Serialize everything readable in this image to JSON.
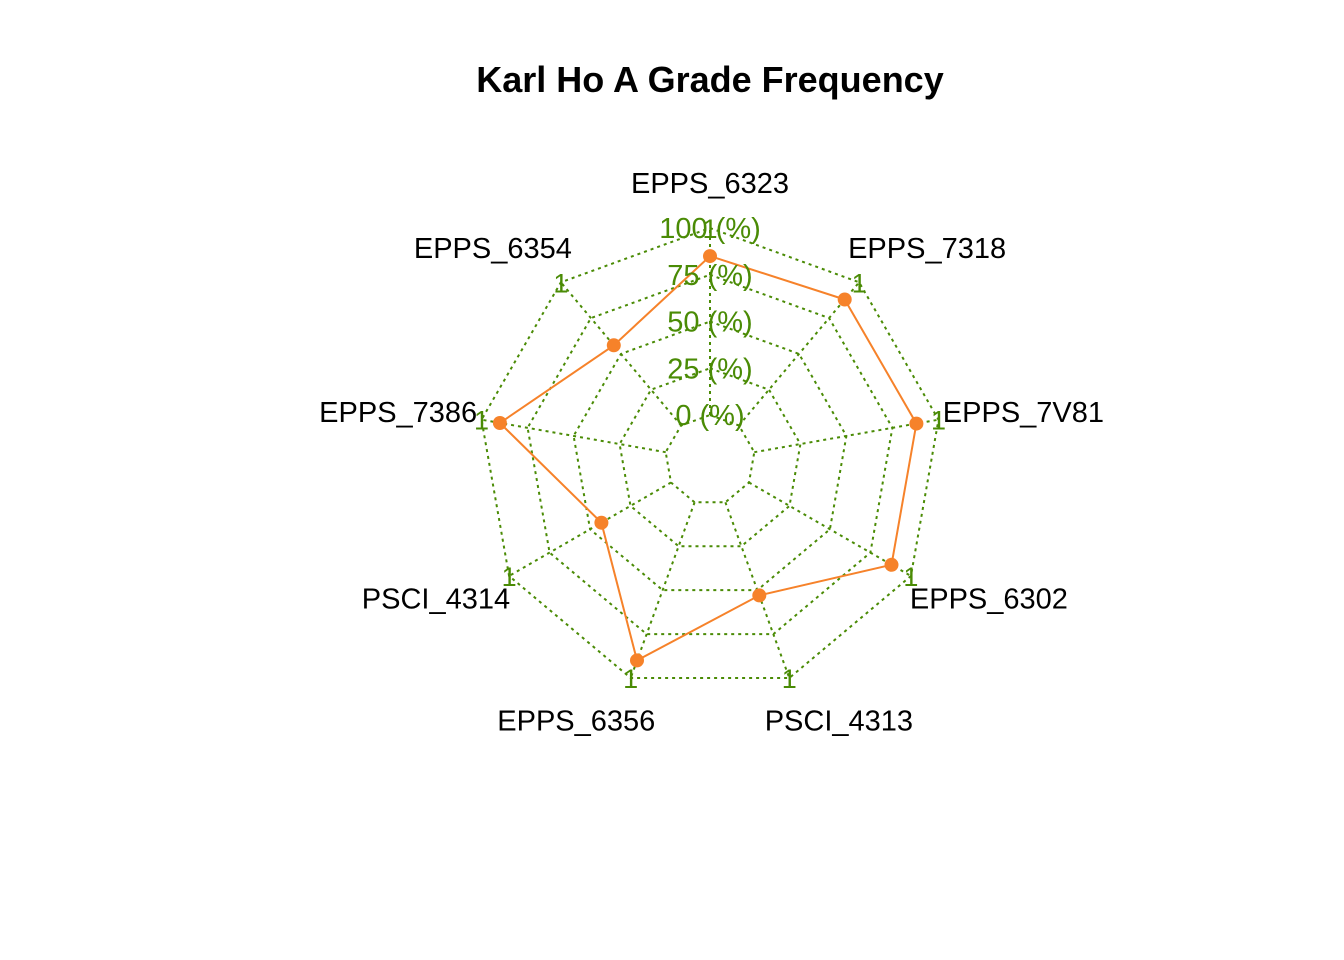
{
  "chart_data": {
    "type": "radar",
    "title": "Karl Ho A Grade Frequency",
    "axes": [
      "EPPS_6323",
      "EPPS_7318",
      "EPPS_7V81",
      "EPPS_6302",
      "PSCI_4313",
      "EPPS_6356",
      "PSCI_4314",
      "EPPS_7386",
      "EPPS_6354"
    ],
    "axis_max_label": "1",
    "range": [
      0,
      1
    ],
    "ticks": [
      {
        "value": 0,
        "label": "0 (%)"
      },
      {
        "value": 0.25,
        "label": "25 (%)"
      },
      {
        "value": 0.5,
        "label": "50 (%)"
      },
      {
        "value": 0.75,
        "label": "75 (%)"
      },
      {
        "value": 1,
        "label": "100 (%)"
      }
    ],
    "series": [
      {
        "values": [
          0.85,
          0.88,
          0.88,
          0.88,
          0.53,
          0.9,
          0.43,
          0.9,
          0.56
        ]
      }
    ],
    "colors": {
      "grid": "#4a8b05",
      "series": "#f6822a",
      "title": "#000000",
      "label": "#000000"
    },
    "grid": true
  }
}
